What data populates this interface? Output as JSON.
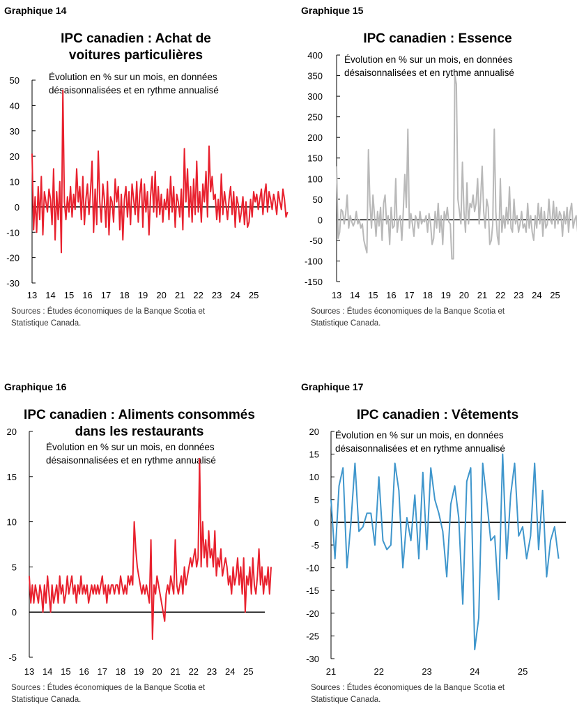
{
  "charts": [
    {
      "number": "Graphique 14",
      "title_lines": [
        "IPC canadien : Achat de",
        "voitures particulières"
      ],
      "subtitle_lines": [
        "Évolution en % sur un mois, en données",
        "désaisonnalisées et en rythme annualisé"
      ],
      "source_lines": [
        "Sources : Études économiques de la Banque Scotia et",
        "Statistique Canada."
      ]
    },
    {
      "number": "Graphique 15",
      "title_lines": [
        "IPC canadien : Essence"
      ],
      "subtitle_lines": [
        "Évolution en % sur un mois, en données",
        "désaisonnalisées et en rythme annualisé"
      ],
      "source_lines": [
        "Sources : Études économiques de la Banque Scotia et",
        "Statistique Canada."
      ]
    },
    {
      "number": "Graphique 16",
      "title_lines": [
        "IPC canadien : Aliments consommés",
        "dans les restaurants"
      ],
      "subtitle_lines": [
        "Évolution en % sur un mois, en données",
        "désaisonnalisées et en rythme annualisé"
      ],
      "source_lines": [
        "Sources : Études économiques de la Banque Scotia et",
        "Statistique Canada."
      ]
    },
    {
      "number": "Graphique 17",
      "title_lines": [
        "IPC canadien : Vêtements"
      ],
      "subtitle_lines": [
        "Évolution en % sur un mois, en données",
        "désaisonnalisées et en rythme annualisé"
      ],
      "source_lines": [
        "Sources : Études économiques de la Banque Scotia et",
        "Statistique Canada."
      ]
    }
  ],
  "chart_data": [
    {
      "type": "line",
      "title": "IPC canadien : Achat de voitures particulières",
      "color": "#e8212e",
      "ylim": [
        -30,
        50
      ],
      "yticks": [
        -30,
        -20,
        -10,
        0,
        10,
        20,
        30,
        40,
        50
      ],
      "xlim": [
        2013,
        2025.9
      ],
      "xticks": [
        "13",
        "14",
        "15",
        "16",
        "17",
        "18",
        "19",
        "20",
        "21",
        "22",
        "23",
        "24",
        "25"
      ],
      "x_start": 2013.0,
      "step": 0.0833,
      "values": [
        21,
        -9,
        4,
        -10,
        8,
        -5,
        12,
        -11,
        6,
        2,
        -2,
        7,
        3,
        -7,
        15,
        -13,
        6,
        -5,
        10,
        -18,
        46,
        2,
        -5,
        4,
        -2,
        8,
        -4,
        5,
        -1,
        15,
        2,
        8,
        -5,
        12,
        -7,
        3,
        9,
        -3,
        6,
        18,
        -10,
        7,
        -7,
        22,
        2,
        -6,
        9,
        3,
        -8,
        10,
        -11,
        4,
        2,
        -6,
        11,
        2,
        8,
        -9,
        5,
        -13,
        3,
        8,
        -4,
        6,
        -7,
        9,
        3,
        -3,
        10,
        -6,
        5,
        11,
        -8,
        9,
        -2,
        6,
        -11,
        4,
        12,
        -2,
        14,
        -4,
        8,
        -3,
        5,
        -6,
        3,
        -1,
        7,
        -5,
        12,
        -2,
        8,
        -8,
        5,
        2,
        -4,
        7,
        -9,
        23,
        2,
        15,
        -4,
        8,
        -6,
        11,
        -3,
        18,
        -2,
        6,
        -6,
        9,
        2,
        14,
        -4,
        24,
        6,
        12,
        3,
        5,
        -5,
        3,
        -6,
        13,
        -3,
        6,
        1,
        -5,
        3,
        8,
        -3,
        6,
        -8,
        4,
        1,
        -6,
        -2,
        4,
        -7,
        2,
        -8,
        -6,
        3,
        -4,
        6,
        2,
        5,
        -1,
        3,
        7,
        -3,
        5,
        9,
        -2,
        6,
        3,
        -1,
        5,
        2,
        -3,
        6,
        2,
        -1,
        7,
        3,
        -4,
        -2
      ]
    },
    {
      "type": "line",
      "title": "IPC canadien : Essence",
      "color": "#b9b9b9",
      "ylim": [
        -150,
        400
      ],
      "yticks": [
        -150,
        -100,
        -50,
        0,
        50,
        100,
        150,
        200,
        250,
        300,
        350,
        400
      ],
      "xlim": [
        2013,
        2025.9
      ],
      "xticks": [
        "13",
        "14",
        "15",
        "16",
        "17",
        "18",
        "19",
        "20",
        "21",
        "22",
        "23",
        "24",
        "25"
      ],
      "x_start": 2013.0,
      "step": 0.0833,
      "values": [
        130,
        -45,
        -30,
        25,
        20,
        -10,
        15,
        60,
        -20,
        10,
        -5,
        -15,
        -5,
        20,
        -10,
        0,
        -20,
        -10,
        -50,
        -65,
        -80,
        170,
        40,
        -20,
        60,
        10,
        -40,
        20,
        -15,
        30,
        -50,
        40,
        60,
        -10,
        10,
        -60,
        30,
        -20,
        -15,
        100,
        -30,
        0,
        10,
        -50,
        20,
        110,
        30,
        220,
        -20,
        15,
        -10,
        -40,
        10,
        0,
        -20,
        20,
        -10,
        0,
        -5,
        10,
        -30,
        15,
        -10,
        -60,
        -45,
        20,
        -20,
        40,
        -30,
        10,
        -60,
        20,
        0,
        30,
        -5,
        -10,
        -95,
        -95,
        350,
        330,
        50,
        20,
        -10,
        140,
        20,
        -30,
        90,
        -10,
        40,
        30,
        60,
        20,
        40,
        100,
        -10,
        50,
        130,
        20,
        -20,
        50,
        30,
        -60,
        -50,
        -10,
        220,
        20,
        -40,
        -60,
        100,
        -30,
        10,
        -20,
        30,
        -10,
        80,
        -20,
        -30,
        50,
        -10,
        10,
        -30,
        -10,
        20,
        -20,
        -10,
        -30,
        40,
        -20,
        10,
        -30,
        -50,
        10,
        -20,
        40,
        -10,
        30,
        -40,
        20,
        -20,
        -10,
        50,
        0,
        -10,
        45,
        -20,
        30,
        -10,
        20,
        10,
        -40,
        20,
        -10,
        30,
        -30,
        20,
        40,
        -20,
        0,
        10,
        -30,
        5,
        -10,
        20,
        -10,
        -30
      ]
    },
    {
      "type": "line",
      "title": "IPC canadien : Aliments consommés dans les restaurants",
      "color": "#e8212e",
      "ylim": [
        -5,
        20
      ],
      "yticks": [
        -5,
        0,
        5,
        10,
        15,
        20
      ],
      "xlim": [
        2013,
        2025.9
      ],
      "xticks": [
        "13",
        "14",
        "15",
        "16",
        "17",
        "18",
        "19",
        "20",
        "21",
        "22",
        "23",
        "24",
        "25"
      ],
      "x_start": 2013.0,
      "step": 0.0833,
      "values": [
        4,
        1,
        3,
        1,
        3,
        2,
        1,
        3,
        2,
        0,
        3,
        1,
        4,
        2,
        0,
        3,
        1,
        2,
        3,
        1,
        4,
        2,
        3,
        1,
        2,
        4,
        2,
        3,
        4,
        2,
        3,
        1,
        3,
        2,
        4,
        2,
        3,
        2,
        3,
        1,
        2,
        3,
        2,
        3,
        2,
        3,
        2,
        3,
        4,
        2,
        3,
        1,
        3,
        2,
        3,
        3,
        2,
        3,
        3,
        2,
        4,
        3,
        2,
        3,
        2,
        4,
        3,
        4,
        3,
        10,
        7,
        5,
        4,
        3,
        2,
        3,
        2,
        3,
        2,
        1,
        8,
        -3,
        3,
        2,
        4,
        3,
        2,
        1,
        0,
        -1,
        2,
        3,
        2,
        4,
        3,
        2,
        8,
        3,
        2,
        3,
        4,
        2,
        5,
        3,
        4,
        5,
        6,
        5,
        6,
        7,
        5,
        6,
        17,
        5,
        10,
        6,
        8,
        5,
        9,
        6,
        7,
        5,
        9,
        4,
        6,
        5,
        7,
        4,
        5,
        6,
        5,
        3,
        4,
        2,
        5,
        3,
        4,
        6,
        3,
        5,
        2,
        6,
        0,
        4,
        3,
        5,
        2,
        6,
        3,
        2,
        4,
        7,
        3,
        5,
        2,
        4,
        3,
        5,
        2,
        5
      ]
    },
    {
      "type": "line",
      "title": "IPC canadien : Vêtements",
      "color": "#3f96cc",
      "ylim": [
        -30,
        20
      ],
      "yticks": [
        -30,
        -25,
        -20,
        -15,
        -10,
        -5,
        0,
        5,
        10,
        15,
        20
      ],
      "xlim": [
        2021,
        2025.9
      ],
      "xticks": [
        "21",
        "22",
        "23",
        "24",
        "25"
      ],
      "x_start": 2021.0,
      "step": 0.0833,
      "values": [
        5,
        -8,
        8,
        12,
        -10,
        0,
        13,
        -2,
        -1,
        2,
        2,
        -5,
        10,
        -4,
        -6,
        -5,
        13,
        7,
        -10,
        1,
        -4,
        6,
        -8,
        11,
        -6,
        12,
        5,
        2,
        -2,
        -12,
        4,
        8,
        1,
        -18,
        9,
        12,
        -28,
        -21,
        13,
        5,
        -4,
        -3,
        -17,
        15,
        -8,
        6,
        13,
        -3,
        -1,
        -8,
        -3,
        13,
        -6,
        7,
        -12,
        -4,
        -1,
        -8
      ]
    }
  ]
}
